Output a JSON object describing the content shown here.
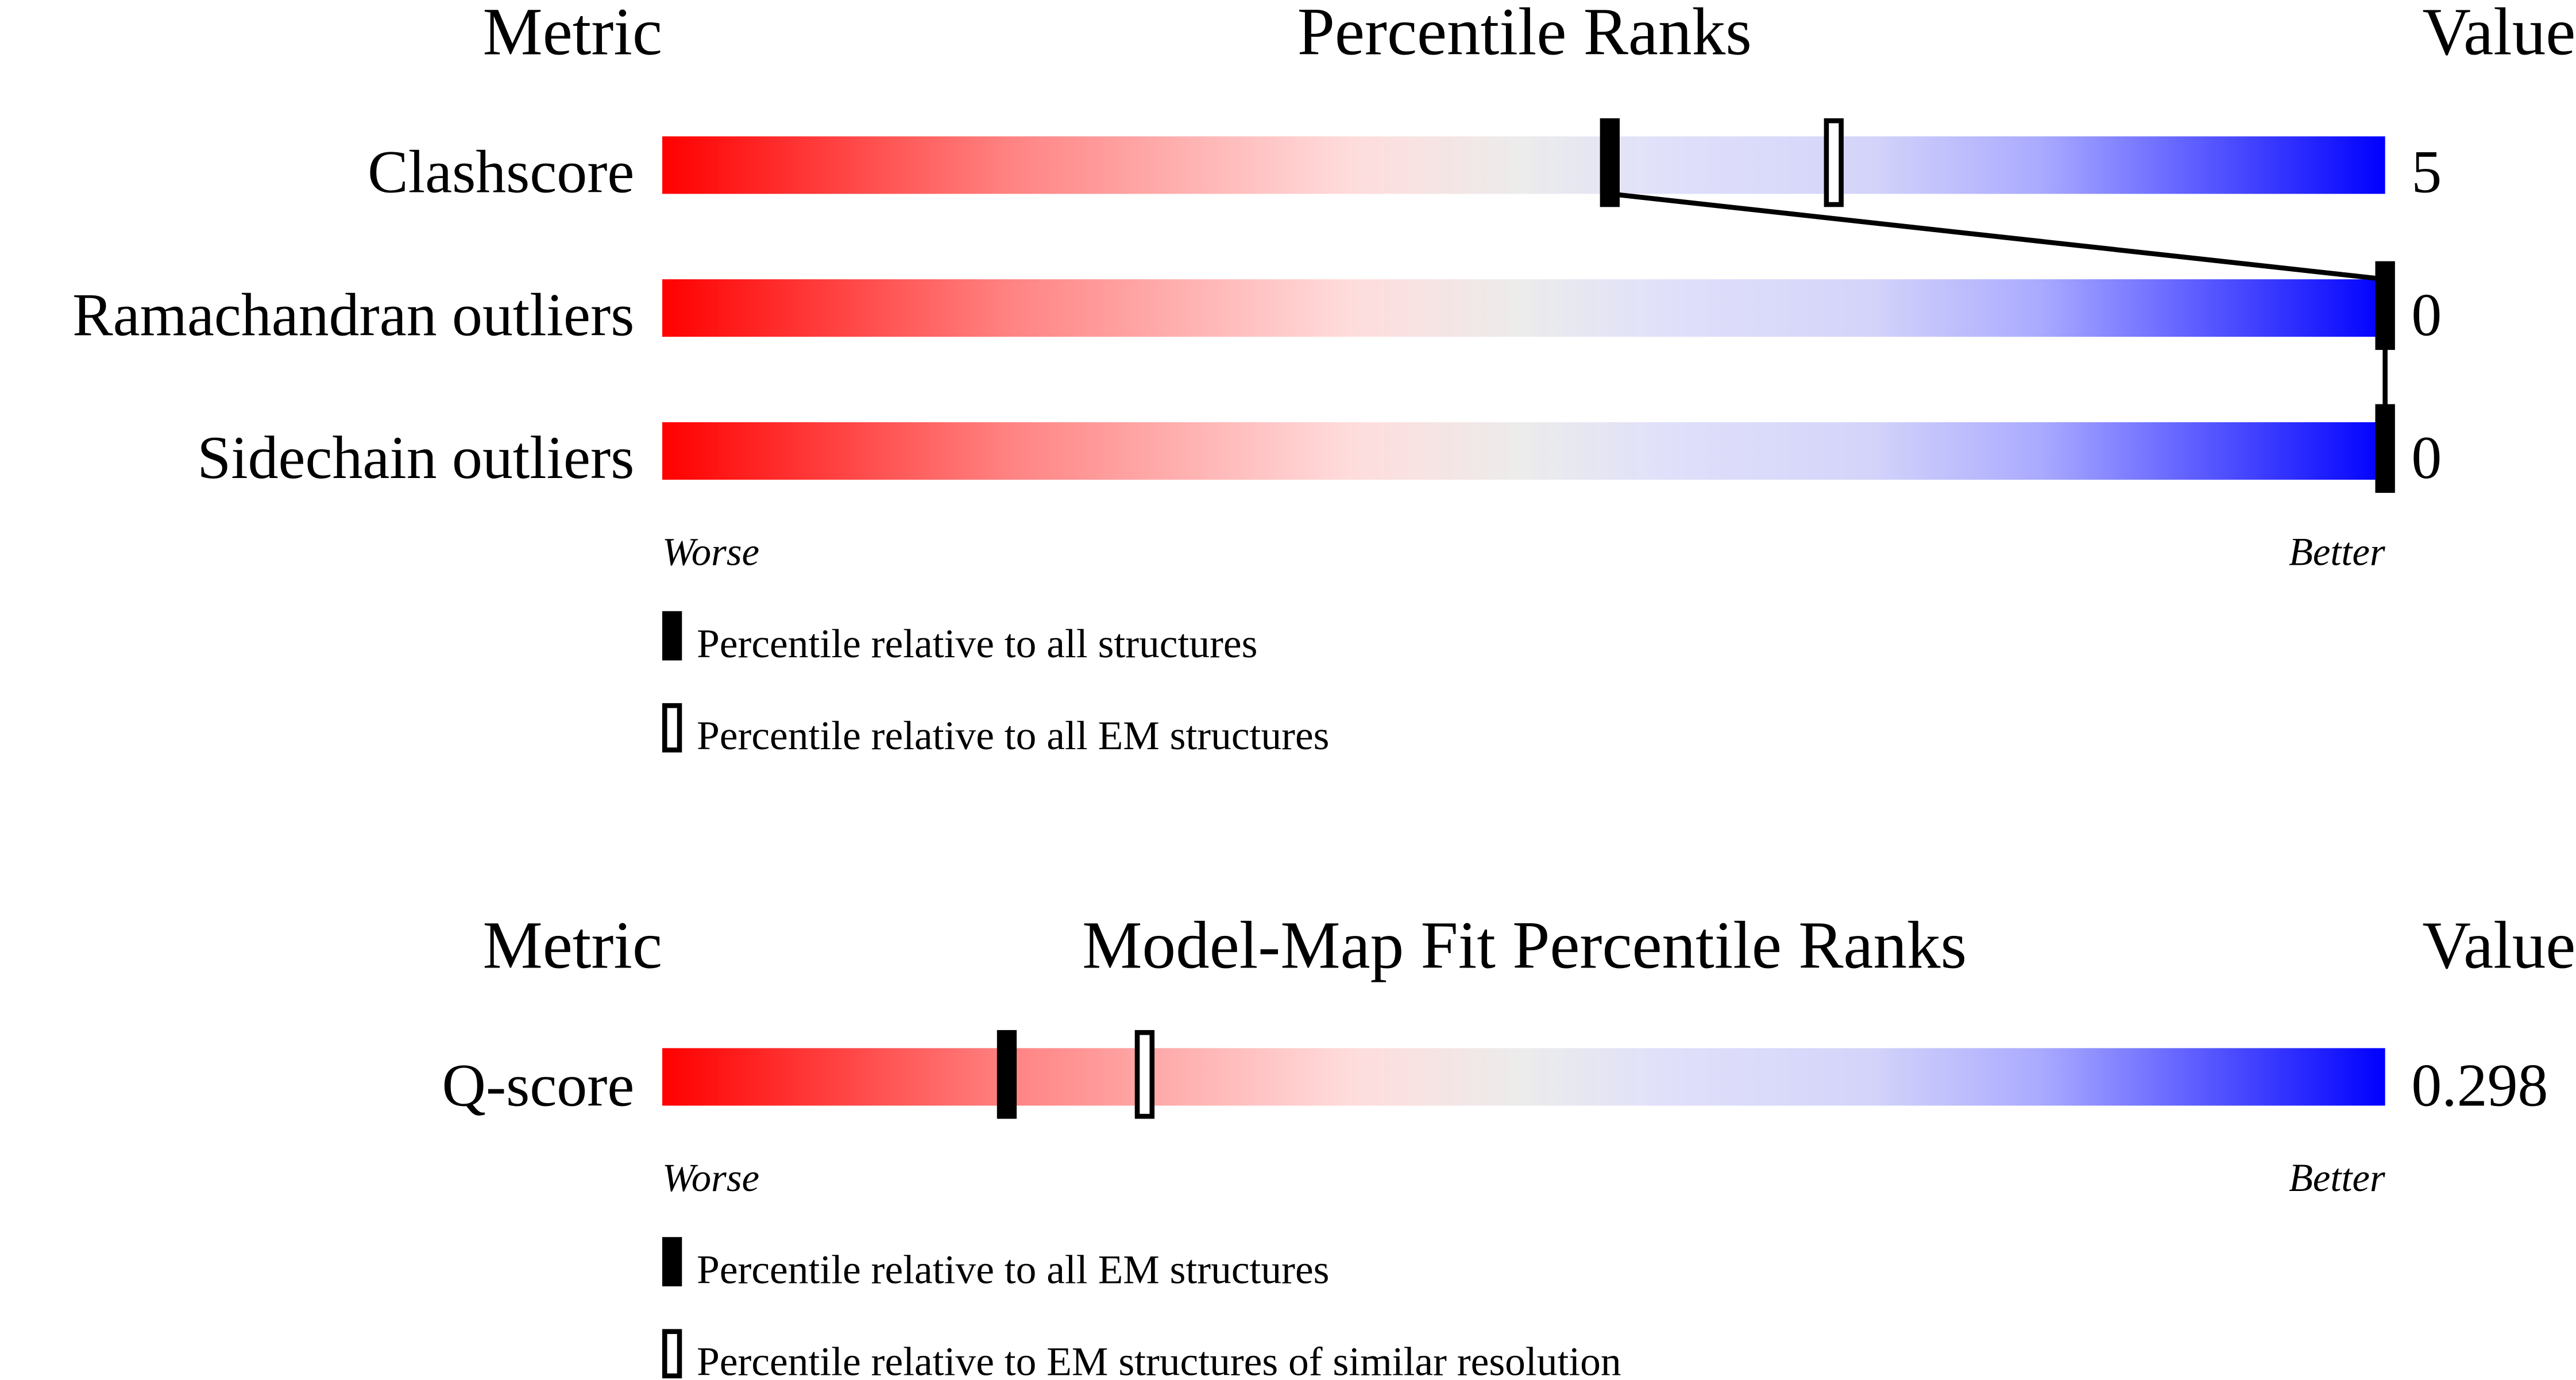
{
  "colors": {
    "worse": "#ff0000",
    "mid": "#ececec",
    "better": "#0000ff",
    "marker": "#000000"
  },
  "chart_data": [
    {
      "type": "percentile-bar",
      "header_metric": "Metric",
      "title": "Percentile Ranks",
      "header_value": "Value",
      "axis_left": "Worse",
      "axis_right": "Better",
      "xlim": [
        0,
        100
      ],
      "metrics": [
        {
          "label": "Clashscore",
          "value": "5",
          "percentile_all": 55,
          "percentile_em": 68
        },
        {
          "label": "Ramachandran outliers",
          "value": "0",
          "percentile_all": 100,
          "percentile_em": null
        },
        {
          "label": "Sidechain outliers",
          "value": "0",
          "percentile_all": 100,
          "percentile_em": null
        }
      ],
      "legend": [
        {
          "marker": "filled",
          "text": "Percentile relative to all structures"
        },
        {
          "marker": "open",
          "text": "Percentile relative to all EM structures"
        }
      ]
    },
    {
      "type": "percentile-bar",
      "header_metric": "Metric",
      "title": "Model-Map Fit Percentile Ranks",
      "header_value": "Value",
      "axis_left": "Worse",
      "axis_right": "Better",
      "xlim": [
        0,
        100
      ],
      "metrics": [
        {
          "label": "Q-score",
          "value": "0.298",
          "percentile_all": 20,
          "percentile_em": 28
        }
      ],
      "legend": [
        {
          "marker": "filled",
          "text": "Percentile relative to all EM structures"
        },
        {
          "marker": "open",
          "text": "Percentile relative to EM structures of similar resolution"
        }
      ]
    }
  ]
}
